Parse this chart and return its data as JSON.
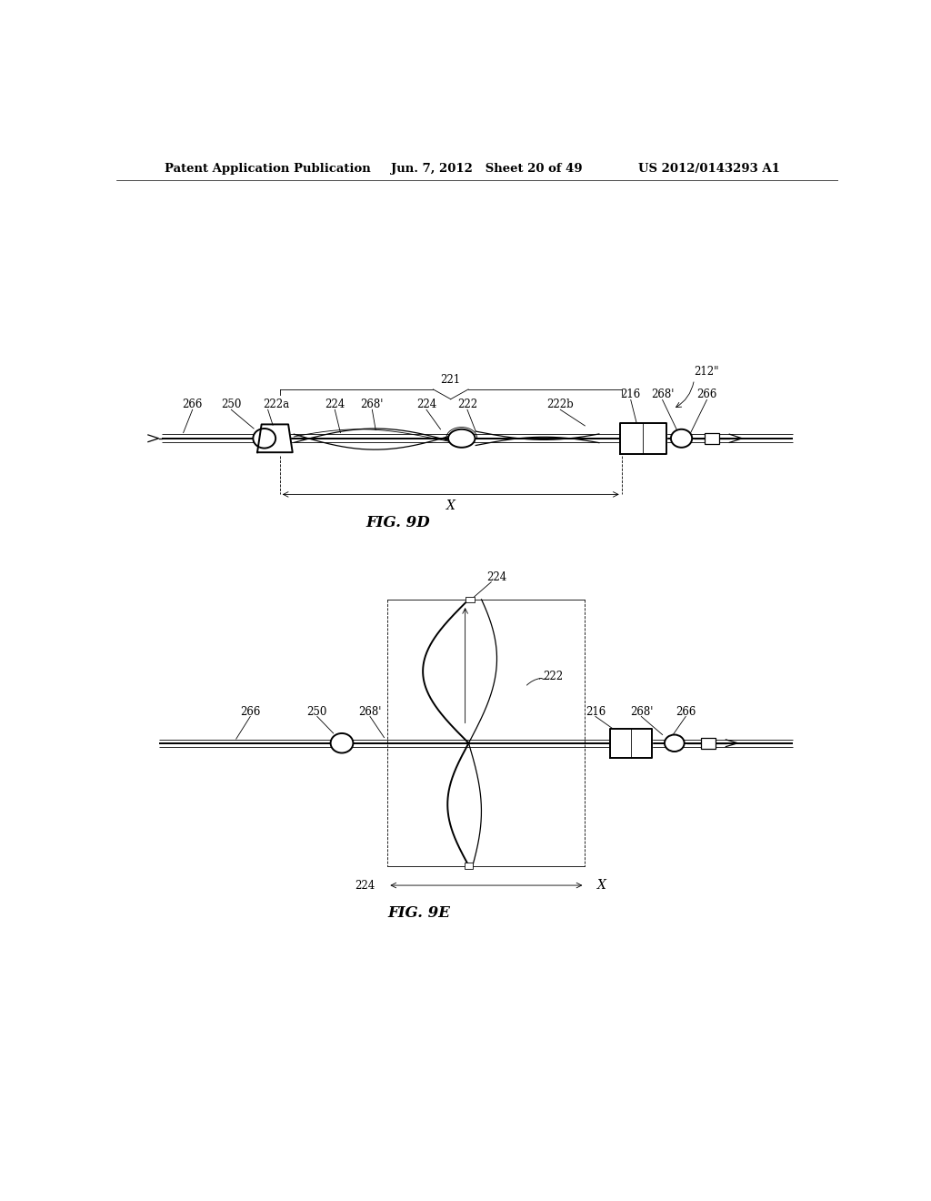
{
  "bg_color": "#ffffff",
  "header_left": "Patent Application Publication",
  "header_mid": "Jun. 7, 2012   Sheet 20 of 49",
  "header_right": "US 2012/0143293 A1",
  "fig9d_label": "FIG. 9D",
  "fig9e_label": "FIG. 9E",
  "lw_main": 1.4,
  "lw_thin": 0.9,
  "lw_hair": 0.6,
  "label_fs": 8.5
}
